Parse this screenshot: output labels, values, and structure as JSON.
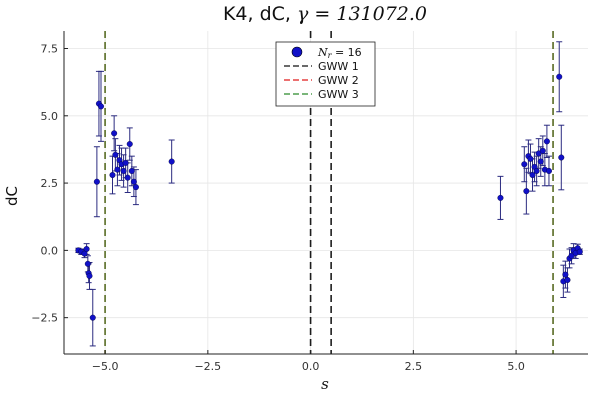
{
  "chart_data": {
    "type": "scatter",
    "title_prefix": "K4, dC, ",
    "title_symbol": "γ",
    "title_suffix": " = 131072.0",
    "xlabel": "s",
    "ylabel": "dC",
    "xlim": [
      -6.0,
      6.75
    ],
    "ylim": [
      -3.85,
      8.15
    ],
    "xticks": [
      -5.0,
      -2.5,
      0.0,
      2.5,
      5.0
    ],
    "xtick_labels": [
      "−5.0",
      "−2.5",
      "0.0",
      "2.5",
      "5.0"
    ],
    "yticks": [
      -2.5,
      0.0,
      2.5,
      5.0,
      7.5
    ],
    "ytick_labels": [
      "−2.5",
      "0.0",
      "2.5",
      "5.0",
      "7.5"
    ],
    "grid": true,
    "legend_position": "top-center",
    "colors": {
      "points": "#1111c8",
      "errorbars": "#2b2b80",
      "gww1": "#111111",
      "gww2": "#e11b1b",
      "gww3": "#2a8a2a"
    },
    "series": [
      {
        "name_symbol": "N",
        "name_subscript": "r",
        "name_suffix": " = 16",
        "kind": "errorbar-scatter",
        "points": [
          {
            "x": -5.65,
            "y": 0.0,
            "err": 0.08
          },
          {
            "x": -5.58,
            "y": -0.05,
            "err": 0.1
          },
          {
            "x": -5.5,
            "y": -0.12,
            "err": 0.15
          },
          {
            "x": -5.45,
            "y": 0.05,
            "err": 0.2
          },
          {
            "x": -5.42,
            "y": -0.5,
            "err": 0.3
          },
          {
            "x": -5.4,
            "y": -0.85,
            "err": 0.35
          },
          {
            "x": -5.38,
            "y": -0.95,
            "err": 0.5
          },
          {
            "x": -5.3,
            "y": -2.5,
            "err": 1.05
          },
          {
            "x": -5.2,
            "y": 2.55,
            "err": 1.3
          },
          {
            "x": -5.15,
            "y": 5.45,
            "err": 1.2
          },
          {
            "x": -5.1,
            "y": 5.35,
            "err": 1.3
          },
          {
            "x": -4.82,
            "y": 2.8,
            "err": 0.7
          },
          {
            "x": -4.78,
            "y": 4.35,
            "err": 0.65
          },
          {
            "x": -4.75,
            "y": 3.55,
            "err": 0.6
          },
          {
            "x": -4.7,
            "y": 3.0,
            "err": 0.6
          },
          {
            "x": -4.65,
            "y": 3.35,
            "err": 0.55
          },
          {
            "x": -4.6,
            "y": 3.2,
            "err": 0.6
          },
          {
            "x": -4.55,
            "y": 2.95,
            "err": 0.6
          },
          {
            "x": -4.5,
            "y": 3.25,
            "err": 0.55
          },
          {
            "x": -4.45,
            "y": 2.7,
            "err": 0.55
          },
          {
            "x": -4.4,
            "y": 3.95,
            "err": 0.6
          },
          {
            "x": -4.35,
            "y": 2.95,
            "err": 0.55
          },
          {
            "x": -4.3,
            "y": 2.55,
            "err": 0.55
          },
          {
            "x": -4.25,
            "y": 2.35,
            "err": 0.65
          },
          {
            "x": -3.38,
            "y": 3.3,
            "err": 0.8
          },
          {
            "x": 4.62,
            "y": 1.95,
            "err": 0.8
          },
          {
            "x": 5.2,
            "y": 3.2,
            "err": 0.65
          },
          {
            "x": 5.25,
            "y": 2.2,
            "err": 0.85
          },
          {
            "x": 5.3,
            "y": 3.5,
            "err": 0.6
          },
          {
            "x": 5.35,
            "y": 3.4,
            "err": 0.55
          },
          {
            "x": 5.4,
            "y": 2.8,
            "err": 0.6
          },
          {
            "x": 5.45,
            "y": 3.1,
            "err": 0.55
          },
          {
            "x": 5.5,
            "y": 2.95,
            "err": 0.55
          },
          {
            "x": 5.55,
            "y": 3.6,
            "err": 0.55
          },
          {
            "x": 5.6,
            "y": 3.3,
            "err": 0.55
          },
          {
            "x": 5.65,
            "y": 3.7,
            "err": 0.55
          },
          {
            "x": 5.7,
            "y": 3.0,
            "err": 0.6
          },
          {
            "x": 5.75,
            "y": 4.05,
            "err": 0.6
          },
          {
            "x": 5.8,
            "y": 2.95,
            "err": 0.55
          },
          {
            "x": 6.05,
            "y": 6.45,
            "err": 1.3
          },
          {
            "x": 6.1,
            "y": 3.45,
            "err": 1.2
          },
          {
            "x": 6.15,
            "y": -1.15,
            "err": 0.6
          },
          {
            "x": 6.2,
            "y": -0.9,
            "err": 0.5
          },
          {
            "x": 6.25,
            "y": -1.1,
            "err": 0.45
          },
          {
            "x": 6.3,
            "y": -0.3,
            "err": 0.35
          },
          {
            "x": 6.35,
            "y": -0.2,
            "err": 0.3
          },
          {
            "x": 6.4,
            "y": 0.0,
            "err": 0.25
          },
          {
            "x": 6.45,
            "y": -0.1,
            "err": 0.2
          },
          {
            "x": 6.5,
            "y": 0.08,
            "err": 0.15
          },
          {
            "x": 6.55,
            "y": -0.05,
            "err": 0.1
          }
        ]
      },
      {
        "name": "GWW 1",
        "kind": "vline",
        "style": "dashed",
        "x_values": [
          0.0,
          0.5
        ]
      },
      {
        "name": "GWW 2",
        "kind": "vline",
        "style": "dashed",
        "x_values": [
          -5.0,
          5.9
        ]
      },
      {
        "name": "GWW 3",
        "kind": "vline",
        "style": "dashed",
        "x_values": [
          -5.0,
          5.9
        ]
      }
    ]
  }
}
